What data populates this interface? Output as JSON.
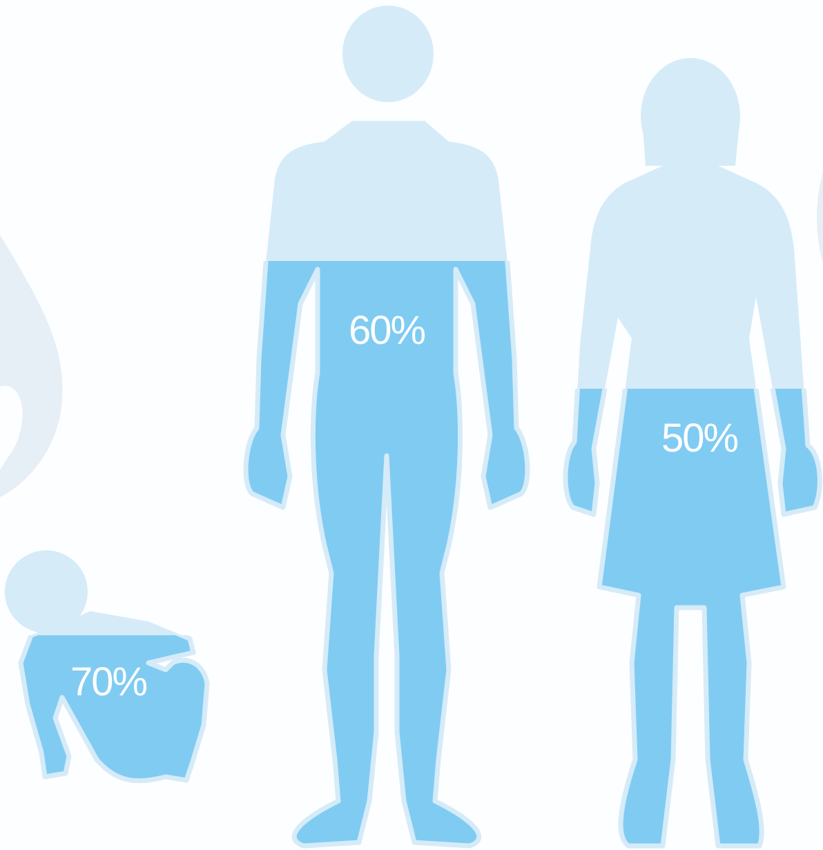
{
  "figures": [
    {
      "label": "70%"
    },
    {
      "label": "60%"
    },
    {
      "label": "50%"
    }
  ]
}
